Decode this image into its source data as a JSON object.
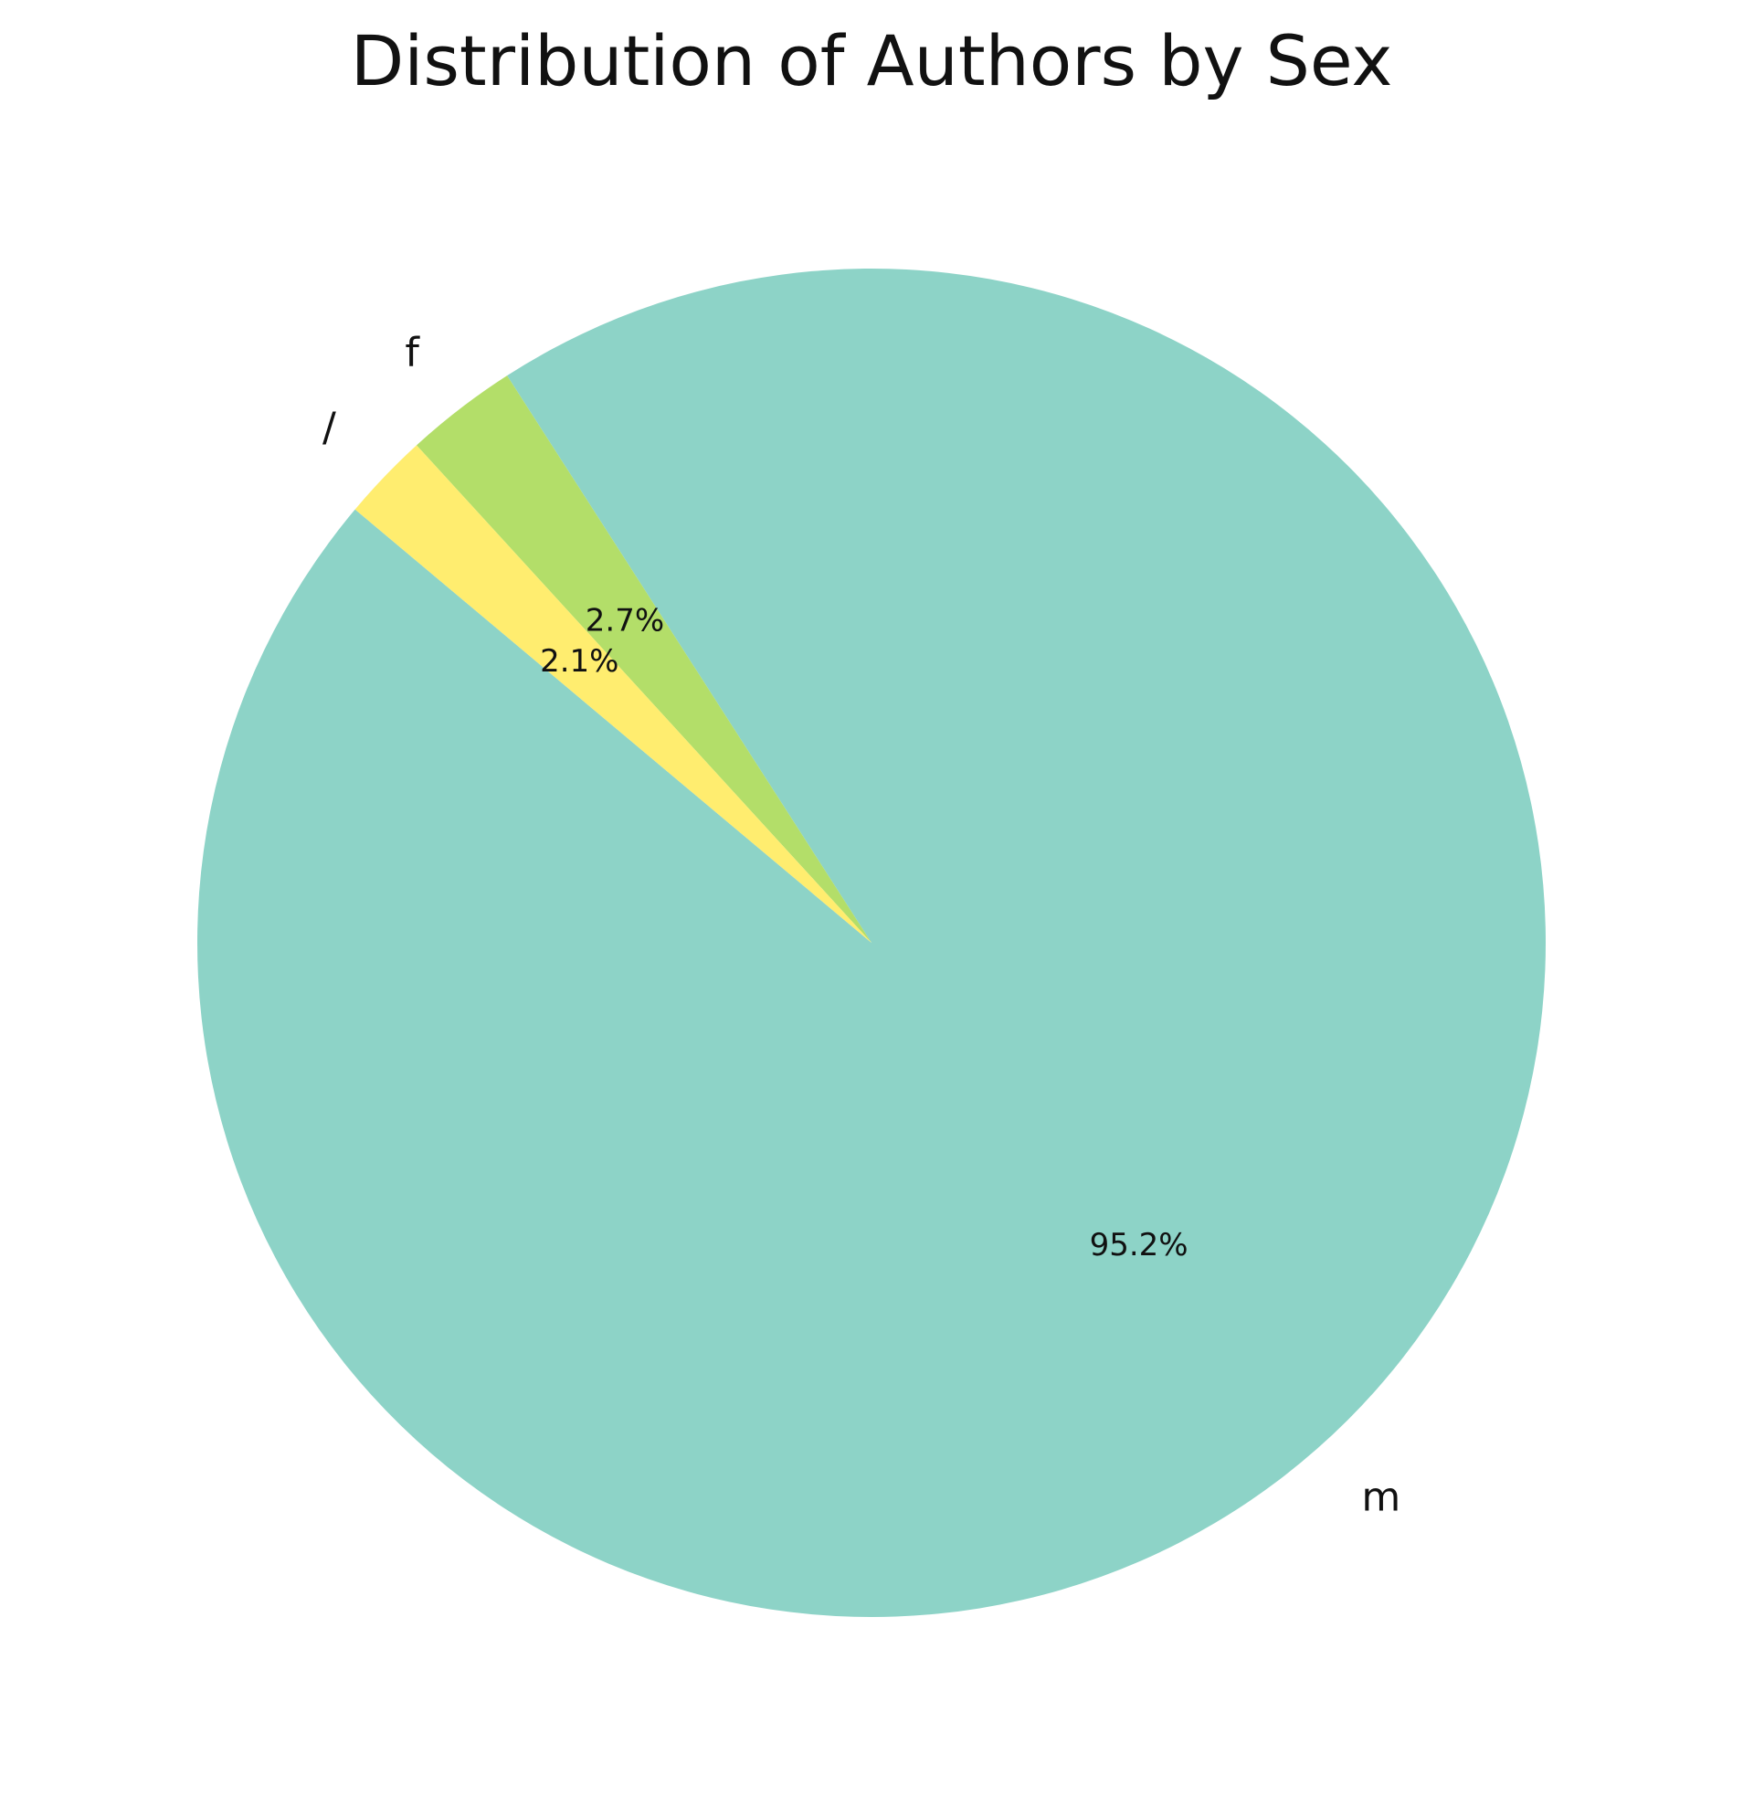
{
  "chart_data": {
    "type": "pie",
    "title": "Distribution of Authors by Sex",
    "slices": [
      {
        "label": "m",
        "value": 95.2,
        "pct_label": "95.2%",
        "color": "#8dd3c7"
      },
      {
        "label": "f",
        "value": 2.7,
        "pct_label": "2.7%",
        "color": "#b3de69"
      },
      {
        "label": "/",
        "value": 2.1,
        "pct_label": "2.1%",
        "color": "#ffed6f"
      }
    ]
  }
}
